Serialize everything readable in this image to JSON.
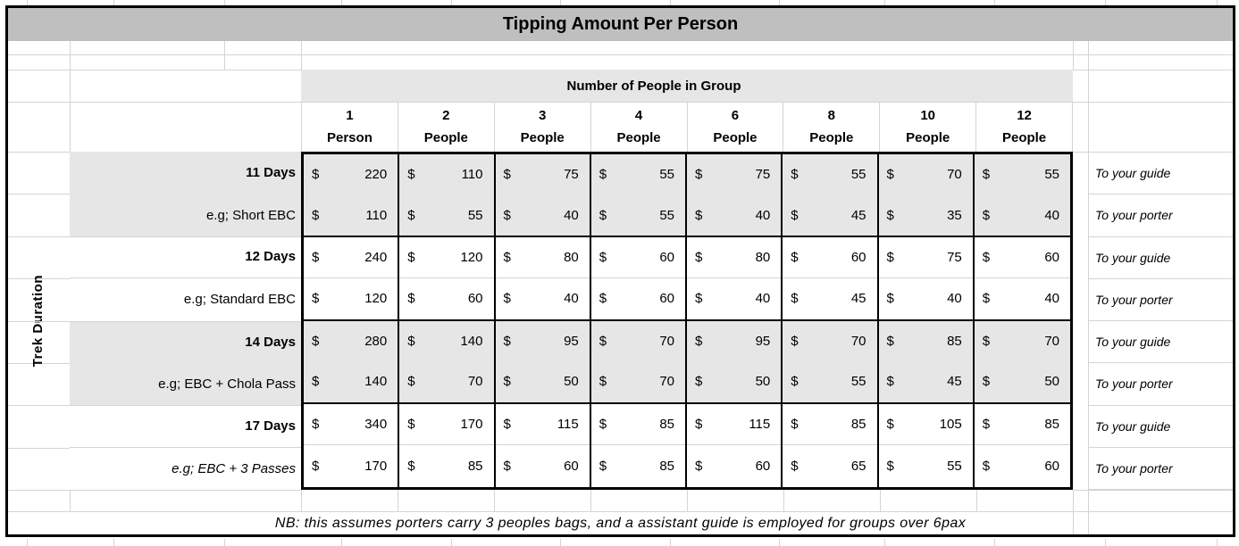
{
  "title": "Tipping Amount Per Person",
  "band_header": "Number of People in Group",
  "left_axis_label": "Trek Duration",
  "currency_symbol": "$",
  "columns": [
    {
      "count": "1",
      "unit": "Person"
    },
    {
      "count": "2",
      "unit": "People"
    },
    {
      "count": "3",
      "unit": "People"
    },
    {
      "count": "4",
      "unit": "People"
    },
    {
      "count": "6",
      "unit": "People"
    },
    {
      "count": "8",
      "unit": "People"
    },
    {
      "count": "10",
      "unit": "People"
    },
    {
      "count": "12",
      "unit": "People"
    }
  ],
  "groups": [
    {
      "duration": "11 Days",
      "example": "e.g; Short EBC",
      "shaded": true,
      "example_italic": false,
      "rows": [
        {
          "recipient": "To your guide",
          "values": [
            220,
            110,
            75,
            55,
            75,
            55,
            70,
            55
          ]
        },
        {
          "recipient": "To your porter",
          "values": [
            110,
            55,
            40,
            55,
            40,
            45,
            35,
            40
          ]
        }
      ]
    },
    {
      "duration": "12 Days",
      "example": "e.g; Standard EBC",
      "shaded": false,
      "example_italic": false,
      "rows": [
        {
          "recipient": "To your guide",
          "values": [
            240,
            120,
            80,
            60,
            80,
            60,
            75,
            60
          ]
        },
        {
          "recipient": "To your porter",
          "values": [
            120,
            60,
            40,
            60,
            40,
            45,
            40,
            40
          ]
        }
      ]
    },
    {
      "duration": "14 Days",
      "example": "e.g; EBC + Chola Pass",
      "shaded": true,
      "example_italic": false,
      "rows": [
        {
          "recipient": "To your guide",
          "values": [
            280,
            140,
            95,
            70,
            95,
            70,
            85,
            70
          ]
        },
        {
          "recipient": "To your porter",
          "values": [
            140,
            70,
            50,
            70,
            50,
            55,
            45,
            50
          ]
        }
      ]
    },
    {
      "duration": "17 Days",
      "example": "e.g; EBC + 3 Passes",
      "shaded": false,
      "example_italic": true,
      "rows": [
        {
          "recipient": "To your guide",
          "values": [
            340,
            170,
            115,
            85,
            115,
            85,
            105,
            85
          ]
        },
        {
          "recipient": "To your porter",
          "values": [
            170,
            85,
            60,
            85,
            60,
            65,
            55,
            60
          ]
        }
      ]
    }
  ],
  "footnote": "NB: this assumes porters carry 3 peoples bags, and a assistant guide is employed for groups over 6pax",
  "colors": {
    "title_bg": "#bfbfbf",
    "shaded_bg": "#e7e6e6",
    "gridline": "#d4d4d4",
    "border": "#000000"
  }
}
